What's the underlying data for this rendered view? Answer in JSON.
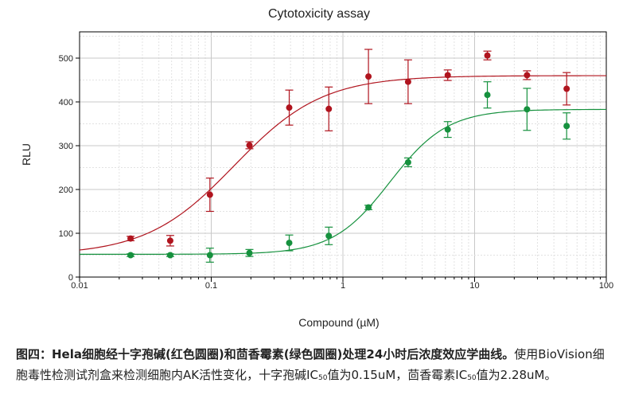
{
  "chart_data": {
    "type": "scatter",
    "title": "Cytotoxicity assay",
    "xlabel": "Compound (µM)",
    "ylabel": "RLU",
    "x_scale": "log",
    "xlim": [
      0.01,
      100
    ],
    "ylim": [
      0,
      560
    ],
    "x_tick_labels": [
      "0.01",
      "0.1",
      "1",
      "10",
      "100"
    ],
    "y_ticks": [
      0,
      100,
      200,
      300,
      400,
      500
    ],
    "grid": true,
    "legend": "none",
    "series": [
      {
        "color": "#b0141e",
        "curve": {
          "bottom": 50,
          "top": 460,
          "ec50": 0.15,
          "hill": 1.3
        },
        "points": [
          {
            "x": 0.0244,
            "y": 88,
            "err": 5
          },
          {
            "x": 0.0488,
            "y": 83,
            "err": 12
          },
          {
            "x": 0.0977,
            "y": 188,
            "err": 38
          },
          {
            "x": 0.195,
            "y": 301,
            "err": 8
          },
          {
            "x": 0.391,
            "y": 387,
            "err": 40
          },
          {
            "x": 0.781,
            "y": 384,
            "err": 50
          },
          {
            "x": 1.5625,
            "y": 458,
            "err": 62
          },
          {
            "x": 3.125,
            "y": 446,
            "err": 50
          },
          {
            "x": 6.25,
            "y": 461,
            "err": 12
          },
          {
            "x": 12.5,
            "y": 506,
            "err": 10
          },
          {
            "x": 25,
            "y": 461,
            "err": 10
          },
          {
            "x": 50,
            "y": 430,
            "err": 37
          }
        ]
      },
      {
        "color": "#16913e",
        "curve": {
          "bottom": 52,
          "top": 383,
          "ec50": 2.28,
          "hill": 2.0
        },
        "points": [
          {
            "x": 0.0244,
            "y": 50,
            "err": 3
          },
          {
            "x": 0.0488,
            "y": 50,
            "err": 3
          },
          {
            "x": 0.0977,
            "y": 50,
            "err": 16
          },
          {
            "x": 0.195,
            "y": 55,
            "err": 8
          },
          {
            "x": 0.391,
            "y": 78,
            "err": 18
          },
          {
            "x": 0.781,
            "y": 94,
            "err": 20
          },
          {
            "x": 1.5625,
            "y": 159,
            "err": 5
          },
          {
            "x": 3.125,
            "y": 262,
            "err": 10
          },
          {
            "x": 6.25,
            "y": 337,
            "err": 18
          },
          {
            "x": 12.5,
            "y": 416,
            "err": 30
          },
          {
            "x": 25,
            "y": 383,
            "err": 48
          },
          {
            "x": 50,
            "y": 345,
            "err": 30
          }
        ]
      }
    ]
  },
  "caption": {
    "bold_part": "图四：Hela细胞经十字孢碱(红色圆圈)和茴香霉素(绿色圆圈)处理24小时后浓度效应学曲线。",
    "text_1": "使用BioVision细胞毒性检测试剂盒来检测细胞内AK活性变化，十字孢碱IC",
    "sub_1": "50",
    "text_2": "值为0.15uM，茴香霉素IC",
    "sub_2": "50",
    "text_3": "值为2.28uM。"
  }
}
